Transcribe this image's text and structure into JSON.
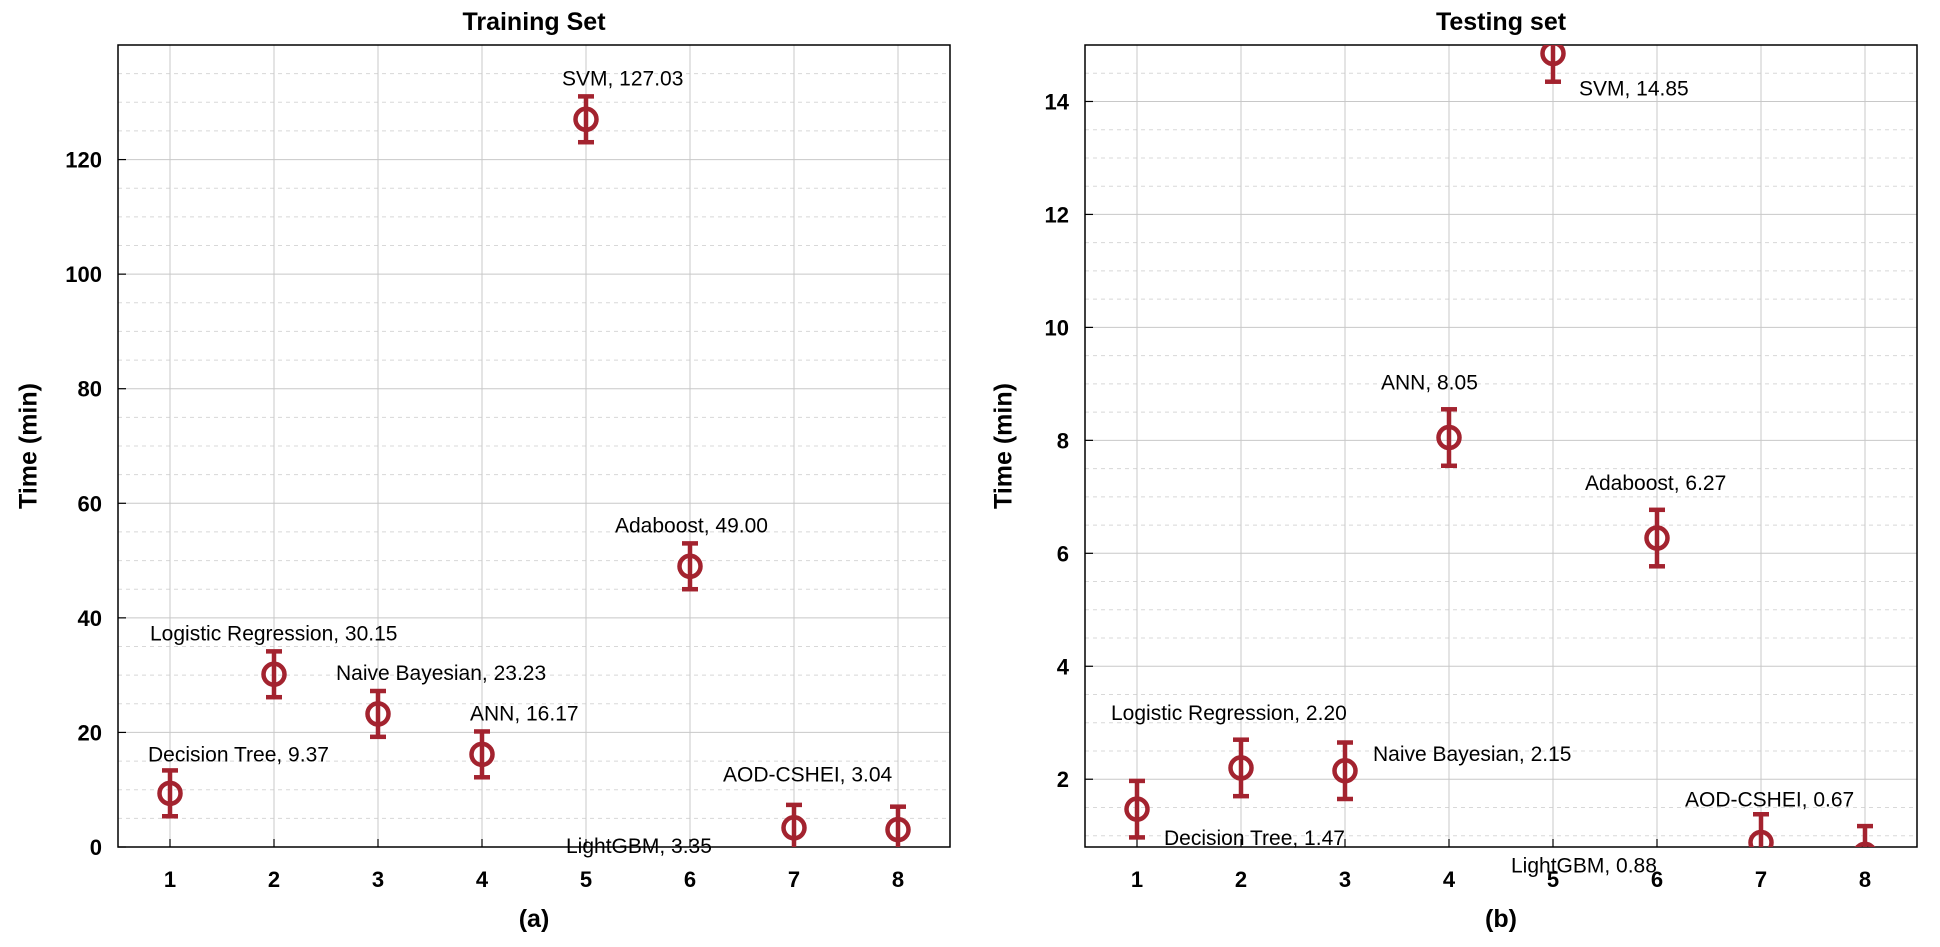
{
  "accent_color": "#a3232f",
  "chart_data": [
    {
      "type": "scatter",
      "title": "Training Set",
      "xlabel": "(a)",
      "ylabel": "Time (min)",
      "xlim": [
        0.5,
        8.5
      ],
      "ylim": [
        0,
        140
      ],
      "xticks": [
        1,
        2,
        3,
        4,
        5,
        6,
        7,
        8
      ],
      "yticks": [
        0,
        20,
        40,
        60,
        80,
        100,
        120
      ],
      "grid": true,
      "points": [
        {
          "x": 1,
          "y": 9.37,
          "err": 4,
          "label": "Decision Tree, 9.37"
        },
        {
          "x": 2,
          "y": 30.15,
          "err": 4,
          "label": "Logistic Regression, 30.15"
        },
        {
          "x": 3,
          "y": 23.23,
          "err": 4,
          "label": "Naive Bayesian, 23.23"
        },
        {
          "x": 4,
          "y": 16.17,
          "err": 4,
          "label": "ANN, 16.17"
        },
        {
          "x": 5,
          "y": 127.03,
          "err": 4,
          "label": "SVM, 127.03"
        },
        {
          "x": 6,
          "y": 49.0,
          "err": 4,
          "label": "Adaboost, 49.00"
        },
        {
          "x": 7,
          "y": 3.35,
          "err": 4,
          "label": "LightGBM, 3.35"
        },
        {
          "x": 8,
          "y": 3.04,
          "err": 4,
          "label": "AOD-CSHEI, 3.04"
        }
      ]
    },
    {
      "type": "scatter",
      "title": "Testing set",
      "xlabel": "(b)",
      "ylabel": "Time (min)",
      "xlim": [
        0.5,
        8.5
      ],
      "ylim": [
        0.8,
        15
      ],
      "xticks": [
        1,
        2,
        3,
        4,
        5,
        6,
        7,
        8
      ],
      "yticks": [
        2,
        4,
        6,
        8,
        10,
        12,
        14
      ],
      "grid": true,
      "points": [
        {
          "x": 1,
          "y": 1.47,
          "err": 0.5,
          "label": "Decision Tree, 1.47"
        },
        {
          "x": 2,
          "y": 2.2,
          "err": 0.5,
          "label": "Logistic Regression, 2.20"
        },
        {
          "x": 3,
          "y": 2.15,
          "err": 0.5,
          "label": "Naive Bayesian, 2.15"
        },
        {
          "x": 4,
          "y": 8.05,
          "err": 0.5,
          "label": "ANN, 8.05"
        },
        {
          "x": 5,
          "y": 14.85,
          "err": 0.5,
          "label": "SVM, 14.85"
        },
        {
          "x": 6,
          "y": 6.27,
          "err": 0.5,
          "label": "Adaboost, 6.27"
        },
        {
          "x": 7,
          "y": 0.88,
          "err": 0.5,
          "label": "LightGBM, 0.88"
        },
        {
          "x": 8,
          "y": 0.67,
          "err": 0.5,
          "label": "AOD-CSHEI, 0.67"
        }
      ]
    }
  ]
}
